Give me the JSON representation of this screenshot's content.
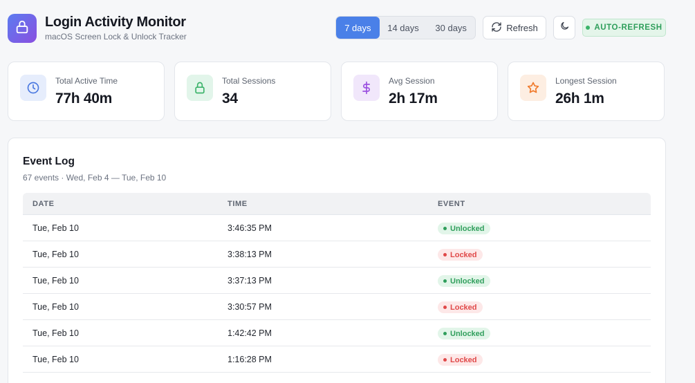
{
  "app": {
    "title": "Login Activity Monitor",
    "subtitle": "macOS Screen Lock & Unlock Tracker",
    "logo_icon": "lock-icon"
  },
  "toolbar": {
    "ranges": [
      {
        "label": "7 days",
        "active": true
      },
      {
        "label": "14 days",
        "active": false
      },
      {
        "label": "30 days",
        "active": false
      }
    ],
    "refresh_label": "Refresh",
    "theme_icon": "moon-icon",
    "auto_refresh_label": "AUTO-REFRESH"
  },
  "stats": [
    {
      "label": "Total Active Time",
      "value": "77h 40m",
      "icon": "clock-icon"
    },
    {
      "label": "Total Sessions",
      "value": "34",
      "icon": "lock-icon"
    },
    {
      "label": "Avg Session",
      "value": "2h 17m",
      "icon": "dollar-icon"
    },
    {
      "label": "Longest Session",
      "value": "26h 1m",
      "icon": "star-icon"
    }
  ],
  "log": {
    "title": "Event Log",
    "subtitle": "67 events · Wed, Feb 4 — Tue, Feb 10",
    "columns": [
      "DATE",
      "TIME",
      "EVENT"
    ],
    "rows": [
      {
        "date": "Tue, Feb 10",
        "time": "3:46:35 PM",
        "event": "Unlocked"
      },
      {
        "date": "Tue, Feb 10",
        "time": "3:38:13 PM",
        "event": "Locked"
      },
      {
        "date": "Tue, Feb 10",
        "time": "3:37:13 PM",
        "event": "Unlocked"
      },
      {
        "date": "Tue, Feb 10",
        "time": "3:30:57 PM",
        "event": "Locked"
      },
      {
        "date": "Tue, Feb 10",
        "time": "1:42:42 PM",
        "event": "Unlocked"
      },
      {
        "date": "Tue, Feb 10",
        "time": "1:16:28 PM",
        "event": "Locked"
      }
    ]
  },
  "colors": {
    "accent": "#4a80e8",
    "unlocked_bg": "#e2f5e9",
    "unlocked_fg": "#2f9e5b",
    "locked_bg": "#fde8e8",
    "locked_fg": "#e04848"
  }
}
